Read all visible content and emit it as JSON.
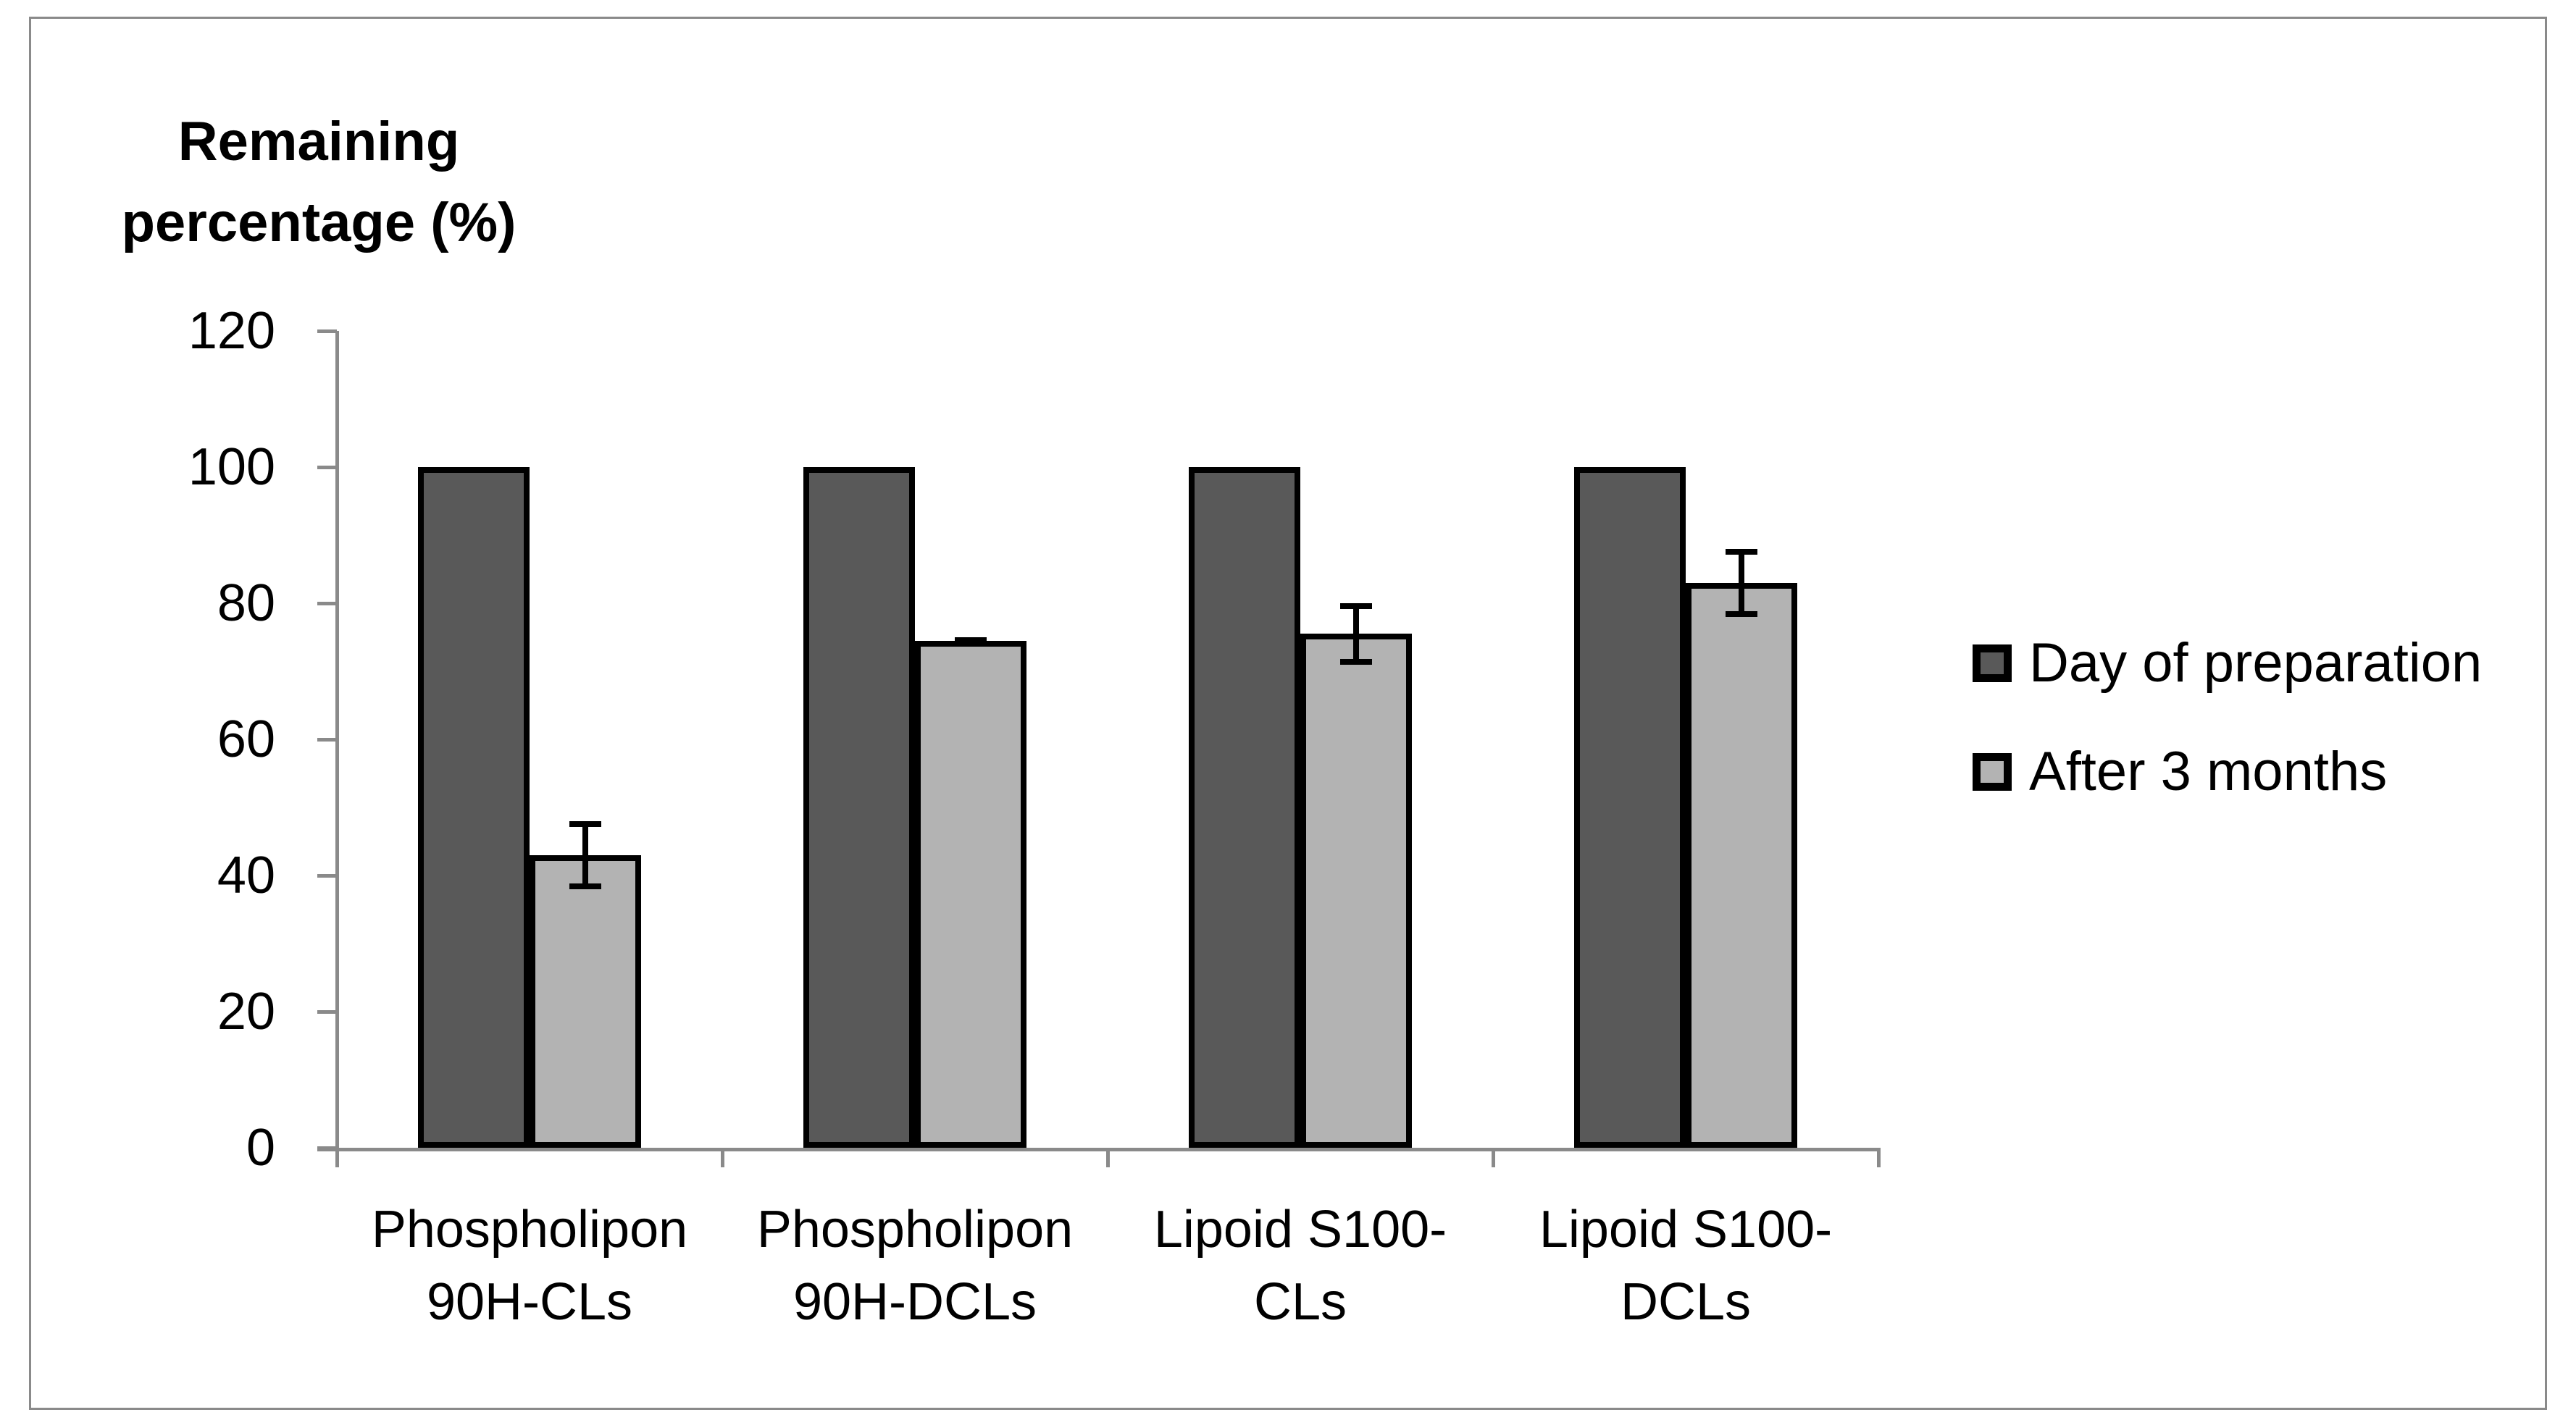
{
  "chart_data": {
    "type": "bar",
    "title": "Remaining percentage (%)",
    "categories": [
      "Phospholipon 90H-CLs",
      "Phospholipon 90H-DCLs",
      "Lipoid S100-CLs",
      "Lipoid S100-DCLs"
    ],
    "category_label_lines": [
      [
        "Phospholipon",
        "90H-CLs"
      ],
      [
        "Phospholipon",
        "90H-DCLs"
      ],
      [
        "Lipoid S100-CLs"
      ],
      [
        "Lipoid S100-",
        "DCLs"
      ]
    ],
    "series": [
      {
        "name": "Day of preparation",
        "values": [
          100,
          100,
          100,
          100
        ],
        "errors": [
          0,
          0,
          0,
          0
        ],
        "color": "#595959"
      },
      {
        "name": "After 3 months",
        "values": [
          43,
          74.5,
          75.5,
          83
        ],
        "errors": [
          5,
          0.5,
          4.5,
          5
        ],
        "color": "#b3b3b3"
      }
    ],
    "xlabel": "",
    "ylabel": "Remaining percentage (%)",
    "ylim": [
      0,
      120
    ],
    "yticks": [
      0,
      20,
      40,
      60,
      80,
      100,
      120
    ],
    "grid": "off",
    "legend_position": "right-center",
    "colors": {
      "bar_outline": "#000000",
      "axis": "#8a8a8a",
      "frame_border": "#8a8a8a",
      "dark_series": "#595959",
      "light_series": "#b3b3b3"
    }
  }
}
